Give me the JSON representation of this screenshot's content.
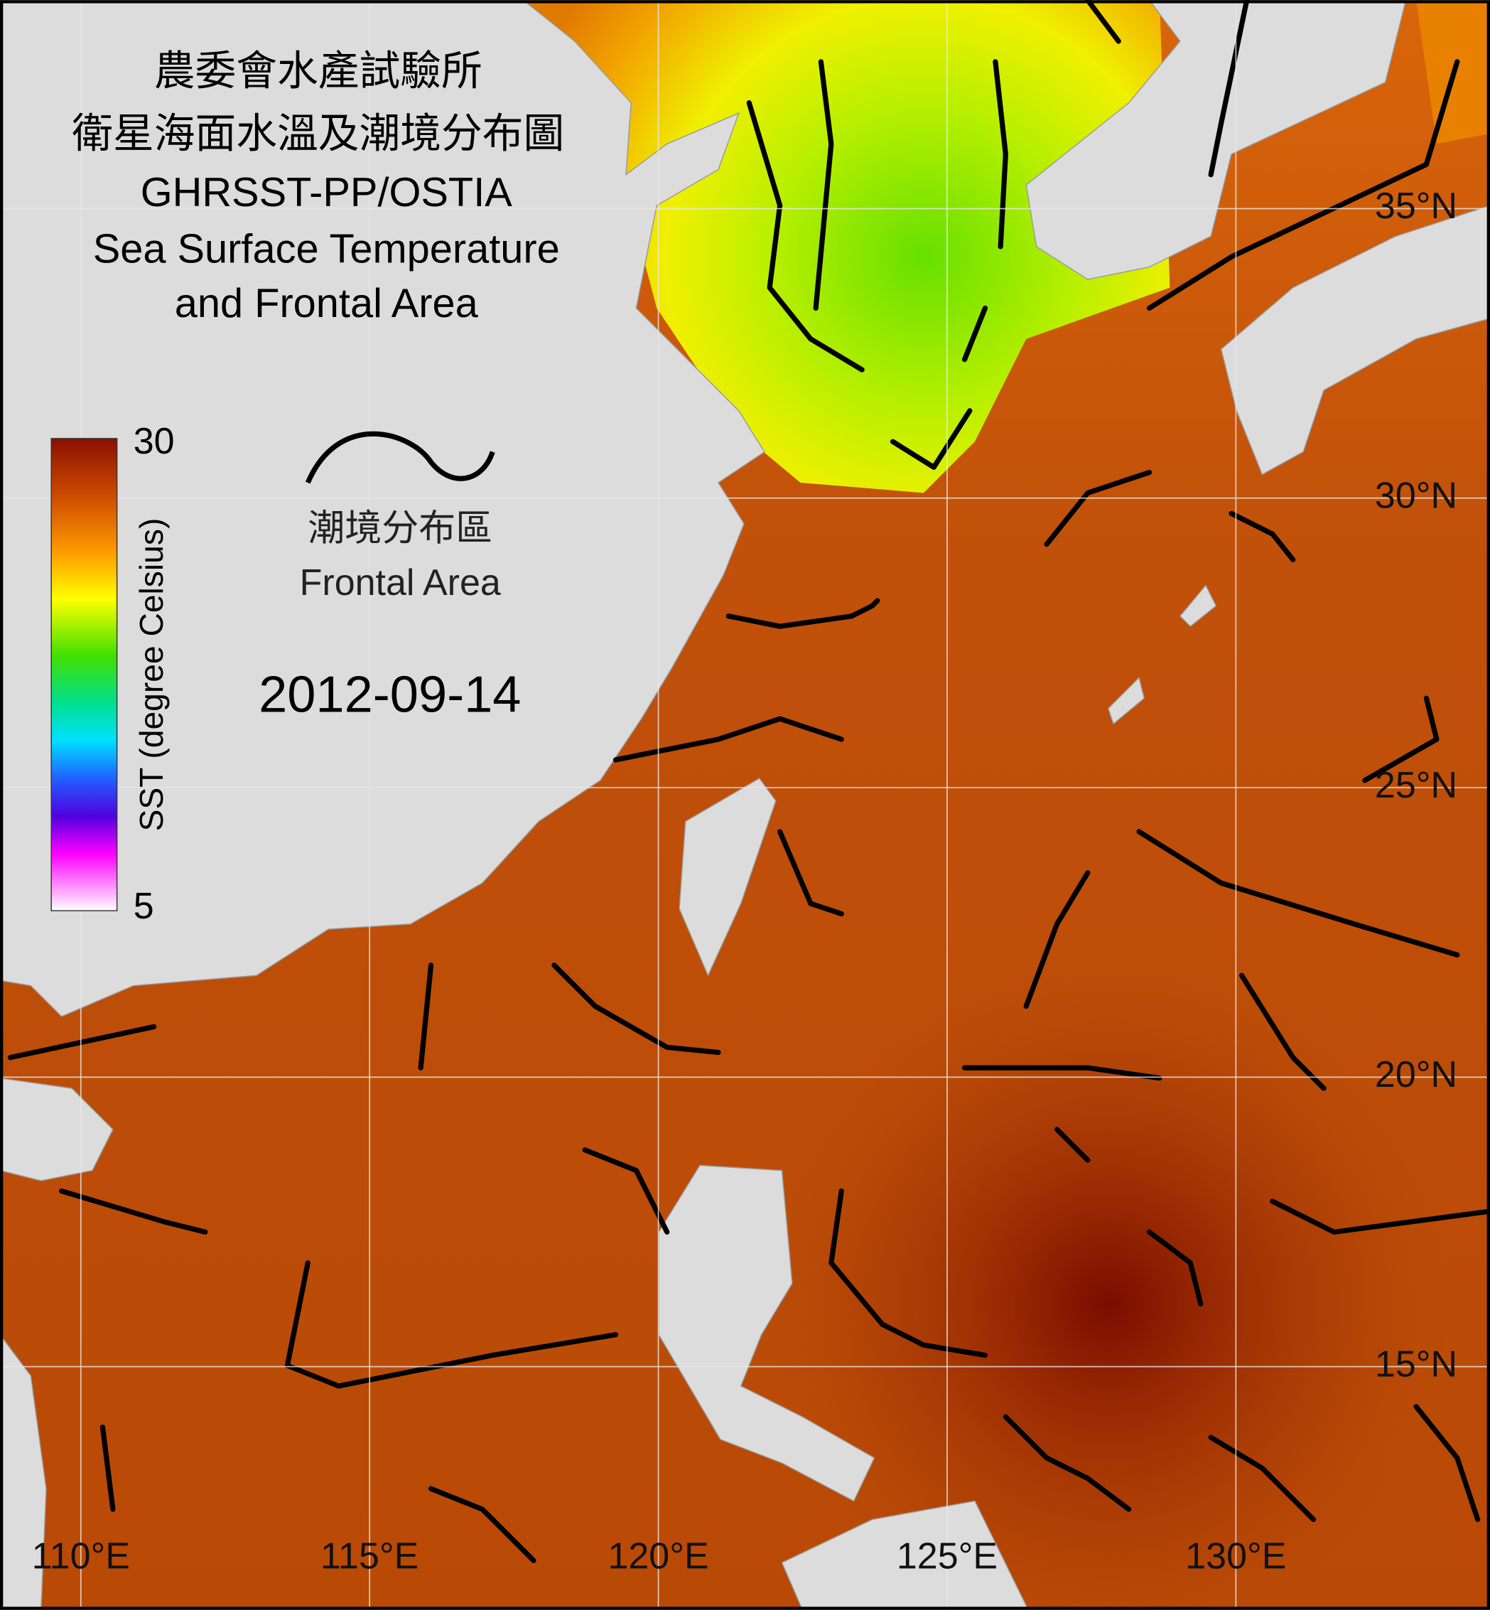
{
  "header": {
    "title_lines": [
      "農委會水產試驗所",
      "衛星海面水溫及潮境分布圖",
      "GHRSST-PP/OSTIA",
      "Sea Surface Temperature",
      "and Frontal Area"
    ]
  },
  "colorbar": {
    "max": 30,
    "min": 5,
    "label": "SST (degree Celsius)"
  },
  "legend": {
    "label_zh": "潮境分布區",
    "label_en": "Frontal Area"
  },
  "date": "2012-09-14",
  "graticule": {
    "xlim": [
      108.6,
      134.4
    ],
    "ylim": [
      10.8,
      38.6
    ],
    "lon": [
      {
        "value": 110,
        "label": "110°E"
      },
      {
        "value": 115,
        "label": "115°E"
      },
      {
        "value": 120,
        "label": "120°E"
      },
      {
        "value": 125,
        "label": "125°E"
      },
      {
        "value": 130,
        "label": "130°E"
      }
    ],
    "lat": [
      {
        "value": 35,
        "label": "35°N"
      },
      {
        "value": 30,
        "label": "30°N"
      },
      {
        "value": 25,
        "label": "25°N"
      },
      {
        "value": 20,
        "label": "20°N"
      },
      {
        "value": 15,
        "label": "15°N"
      }
    ]
  }
}
